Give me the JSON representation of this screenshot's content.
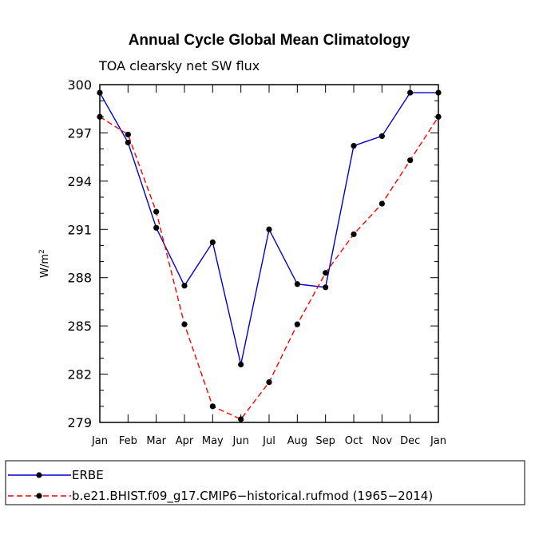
{
  "chart_data": {
    "type": "line",
    "title": "Annual Cycle Global Mean Climatology",
    "subtitle": "TOA clearsky net SW flux",
    "xlabel": "",
    "ylabel": "W/m",
    "ylabel_superscript": "2",
    "categories": [
      "Jan",
      "Feb",
      "Mar",
      "Apr",
      "May",
      "Jun",
      "Jul",
      "Aug",
      "Sep",
      "Oct",
      "Nov",
      "Dec",
      "Jan"
    ],
    "ylim": [
      279,
      300
    ],
    "yticks": [
      279,
      282,
      285,
      288,
      291,
      294,
      297,
      300
    ],
    "series": [
      {
        "name": "ERBE",
        "color": "#0000cc",
        "dash": "solid",
        "values": [
          299.5,
          296.4,
          291.1,
          287.5,
          290.2,
          282.6,
          291.0,
          287.6,
          287.4,
          296.2,
          296.8,
          299.5,
          299.5
        ]
      },
      {
        "name": "b.e21.BHIST.f09_g17.CMIP6−historical.rufmod (1965−2014)",
        "color": "#ff0000",
        "dash": "dashed",
        "values": [
          298.0,
          296.9,
          292.1,
          285.1,
          280.0,
          279.2,
          281.5,
          285.1,
          288.3,
          290.7,
          292.6,
          295.3,
          298.0
        ]
      }
    ],
    "legend_position": "bottom"
  }
}
